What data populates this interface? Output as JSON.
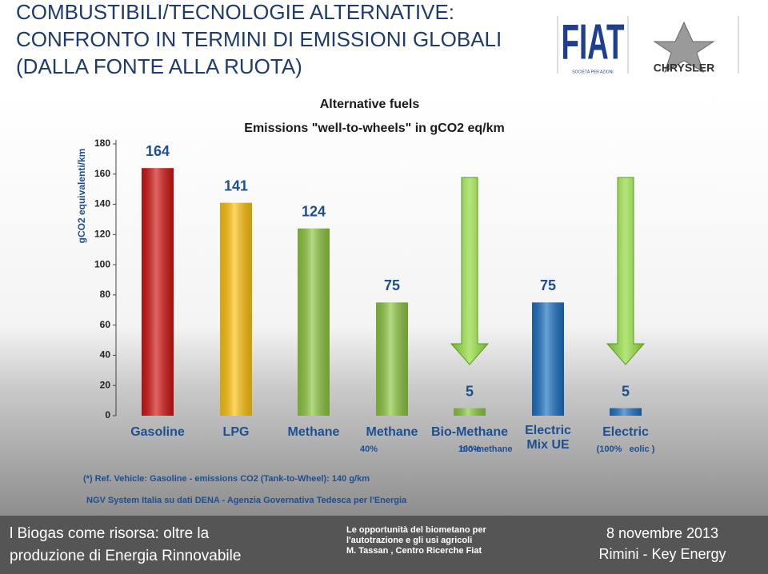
{
  "header": {
    "title": [
      "COMBUSTIBILI/TECNOLOGIE ALTERNATIVE:",
      "CONFRONTO IN TERMINI DI EMISSIONI GLOBALI",
      "(DALLA FONTE ALLA RUOTA)"
    ],
    "logos": [
      "FIAT",
      "SOCIETÀ PER AZIONI",
      "CHRYSLER"
    ]
  },
  "chart_data": {
    "type": "bar",
    "title": "Alternative fuels",
    "subtitle": "Emissions  \"well-to-wheels\"  in gCO2 eq/km",
    "y_label": "gCO2 equivalenti/km",
    "categories": [
      "Gasoline",
      "LPG",
      "Methane",
      "Methane",
      "Bio-Methane",
      "Electric Mix UE",
      "Electric"
    ],
    "sublabels": [
      null,
      null,
      null,
      "40% bio-methane",
      "100%",
      null,
      "(100%   eolic )"
    ],
    "values": [
      164,
      141,
      124,
      75,
      5,
      75,
      5
    ],
    "colors": [
      "#cf1412",
      "#ffc20e",
      "#8cc63f",
      "#8cc63f",
      "#8cc63f",
      "#1a6fc1",
      "#1a6fc1"
    ],
    "ylim": [
      0,
      180
    ],
    "yticks": [
      0,
      20,
      40,
      60,
      80,
      100,
      120,
      140,
      160,
      180
    ],
    "notes": [
      "(*)  Ref. Vehicle: Gasoline - emissions  CO2 (Tank-to-Wheel): 140 g/km",
      "NGV System Italia su dati DENA - Agenzia Governativa Tedesca per l'Energia"
    ]
  },
  "footer": {
    "left": [
      "l Biogas come risorsa: oltre la",
      "produzione di Energia Rinnovabile"
    ],
    "center": [
      "Le opportunità del biometano per",
      "l'autotrazione  e gli usi agricoli",
      "M. Tassan , Centro Ricerche Fiat"
    ],
    "right": [
      "8 novembre 2013",
      "Rimini - Key Energy"
    ]
  }
}
